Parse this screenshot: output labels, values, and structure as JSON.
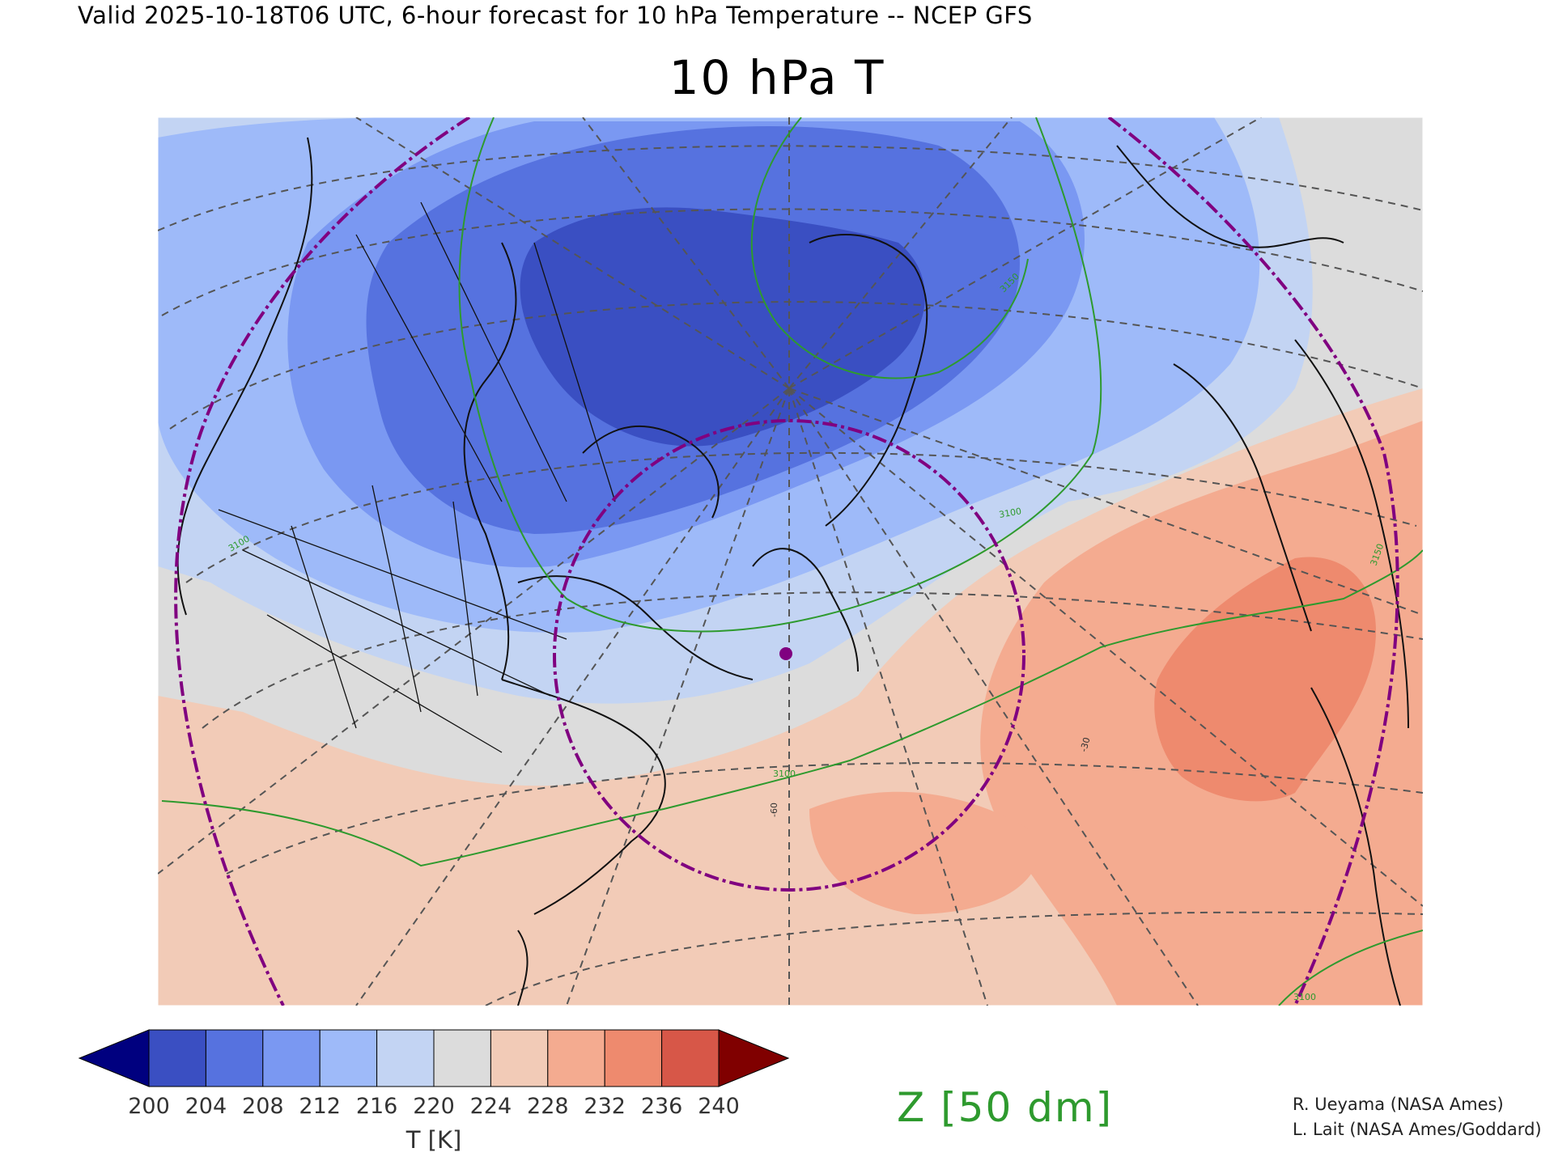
{
  "header": {
    "valid_text": "Valid 2025-10-18T06 UTC, 6-hour forecast for 10 hPa Temperature -- NCEP GFS",
    "title": "10 hPa T"
  },
  "colorbar": {
    "ticks": [
      "200",
      "204",
      "208",
      "212",
      "216",
      "220",
      "224",
      "228",
      "232",
      "236",
      "240"
    ],
    "units": "T [K]",
    "under_color": "#00007f",
    "over_color": "#800000",
    "colors": [
      "#3a4fc2",
      "#5672df",
      "#7a98f2",
      "#9ebaf9",
      "#c3d4f3",
      "#dcdcdc",
      "#f2cbb7",
      "#f4ab90",
      "#ee8a6e",
      "#d75748"
    ]
  },
  "contour": {
    "label": "Z [50 dm]",
    "color": "#2e9a2e",
    "map_labels": [
      "3100",
      "3100",
      "3100",
      "3150",
      "3150",
      "3100"
    ]
  },
  "graticule": {
    "lon_labels": [
      "-60",
      "-30"
    ]
  },
  "credits": [
    "R. Ueyama (NASA Ames)",
    "L. Lait (NASA Ames/Goddard)"
  ],
  "marker": {
    "color": "#800080"
  }
}
